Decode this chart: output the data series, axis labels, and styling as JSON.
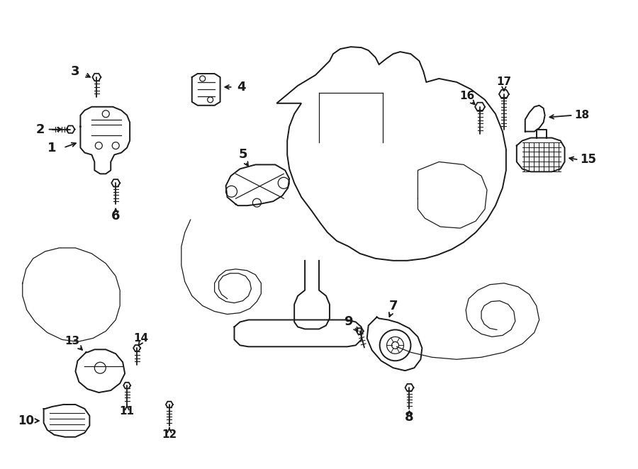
{
  "bg_color": "#ffffff",
  "line_color": "#1a1a1a",
  "figsize": [
    9.0,
    6.62
  ],
  "dpi": 100,
  "lw_main": 1.4,
  "lw_thin": 0.9,
  "lw_thick": 2.0
}
